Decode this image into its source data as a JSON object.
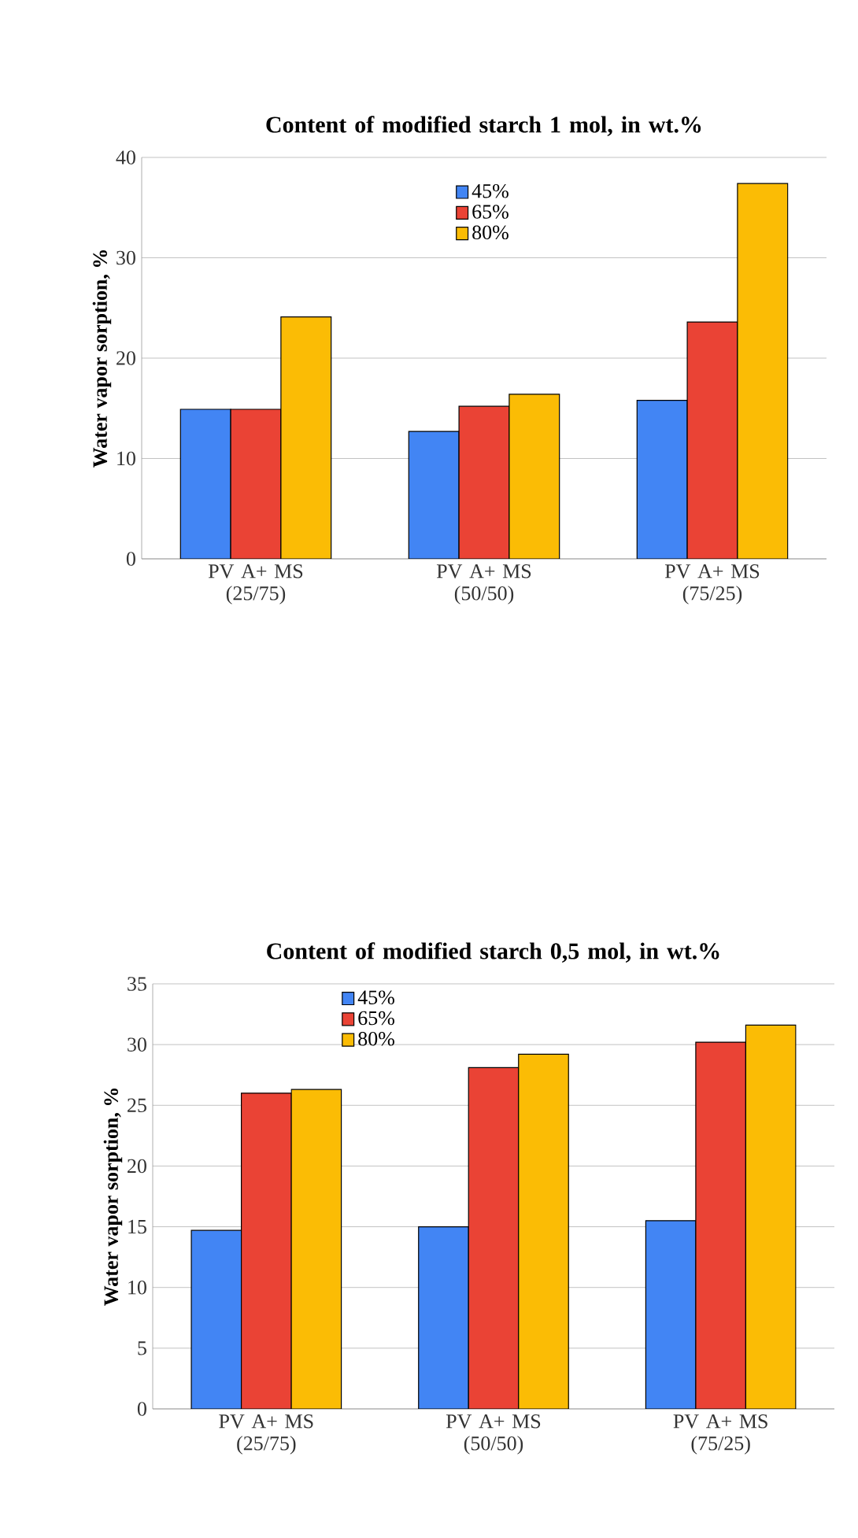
{
  "chart_data": [
    {
      "type": "bar",
      "title": "Content of modified  starch 1 mol, in wt.%",
      "ylabel": "Water vapor sorption, %",
      "categories": [
        "PV A+ MS (25/75)",
        "PV A+ MS (50/50)",
        "PV A+ MS (75/25)"
      ],
      "series": [
        {
          "name": "45%",
          "color": "#4285f4",
          "values": [
            14.9,
            12.7,
            15.8
          ]
        },
        {
          "name": "65%",
          "color": "#ea4335",
          "values": [
            14.9,
            15.2,
            23.6
          ]
        },
        {
          "name": "80%",
          "color": "#fbbc05",
          "values": [
            24.1,
            16.4,
            37.4
          ]
        }
      ],
      "ylim": [
        0,
        40
      ],
      "yticks": [
        0,
        10,
        20,
        30,
        40
      ],
      "grid": "y",
      "legend": "top"
    },
    {
      "type": "bar",
      "title": "Content of modified  starch 0,5 mol, in wt.%",
      "ylabel": "Water vapor sorption, %",
      "categories": [
        "PV A+ MS (25/75)",
        "PV A+ MS (50/50)",
        "PV A+ MS (75/25)"
      ],
      "series": [
        {
          "name": "45%",
          "color": "#4285f4",
          "values": [
            14.7,
            15.0,
            15.5
          ]
        },
        {
          "name": "65%",
          "color": "#ea4335",
          "values": [
            26.0,
            28.1,
            30.2
          ]
        },
        {
          "name": "80%",
          "color": "#fbbc05",
          "values": [
            26.3,
            29.2,
            31.6
          ]
        }
      ],
      "ylim": [
        0,
        35
      ],
      "yticks": [
        0,
        5,
        10,
        15,
        20,
        25,
        30,
        35
      ],
      "grid": "y",
      "legend": "top left"
    }
  ]
}
